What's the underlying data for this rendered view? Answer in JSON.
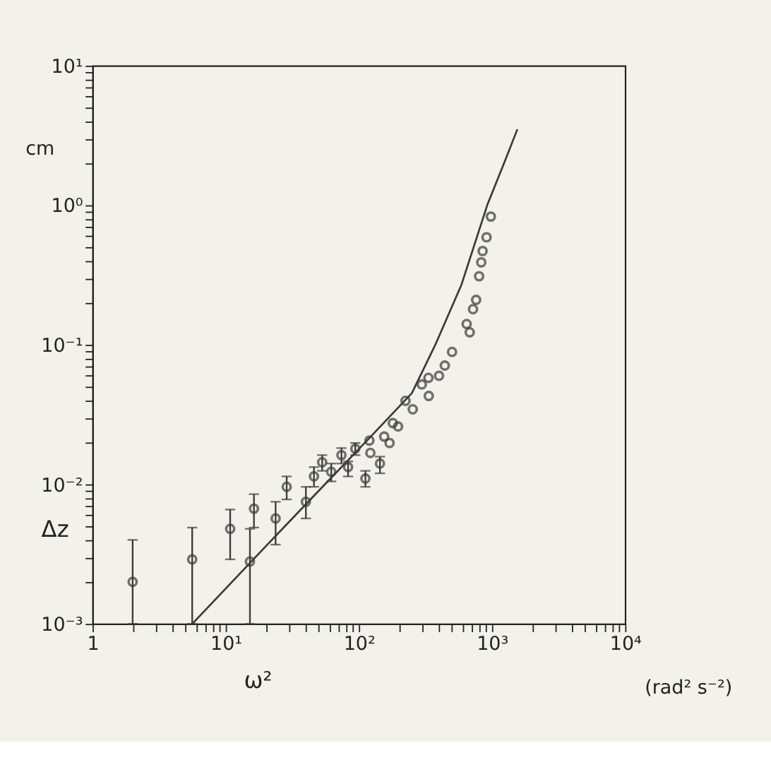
{
  "chart_data": {
    "type": "scatter",
    "xlabel": "ω²",
    "ylabel": "Δz",
    "annotations": [
      "cm",
      "(rad² s⁻²)"
    ],
    "log": "xy",
    "xlim": [
      1,
      10000
    ],
    "ylim": [
      0.001,
      10
    ],
    "xticks": [
      1,
      {
        "value": 2,
        "label": null
      },
      {
        "value": 3,
        "label": null
      },
      {
        "value": 4,
        "label": null
      },
      {
        "value": 5,
        "label": null
      },
      {
        "value": 6,
        "label": null
      },
      {
        "value": 7,
        "label": null
      },
      {
        "value": 8,
        "label": null
      },
      {
        "value": 9,
        "label": null
      },
      {
        "value": 10,
        "label": "10¹"
      },
      {
        "value": 20,
        "label": null
      },
      {
        "value": 30,
        "label": null
      },
      {
        "value": 40,
        "label": null
      },
      {
        "value": 50,
        "label": null
      },
      {
        "value": 60,
        "label": null
      },
      {
        "value": 70,
        "label": null
      },
      {
        "value": 80,
        "label": null
      },
      {
        "value": 90,
        "label": null
      },
      {
        "value": 100,
        "label": "10²"
      },
      {
        "value": 200,
        "label": null
      },
      {
        "value": 300,
        "label": null
      },
      {
        "value": 400,
        "label": null
      },
      {
        "value": 500,
        "label": null
      },
      {
        "value": 600,
        "label": null
      },
      {
        "value": 700,
        "label": null
      },
      {
        "value": 800,
        "label": null
      },
      {
        "value": 900,
        "label": null
      },
      {
        "value": 1000,
        "label": "10³"
      },
      {
        "value": 2000,
        "label": null
      },
      {
        "value": 3000,
        "label": null
      },
      {
        "value": 4000,
        "label": null
      },
      {
        "value": 5000,
        "label": null
      },
      {
        "value": 6000,
        "label": null
      },
      {
        "value": 7000,
        "label": null
      },
      {
        "value": 8000,
        "label": null
      },
      {
        "value": 9000,
        "label": null
      },
      {
        "value": 10000,
        "label": "10⁴"
      }
    ],
    "yticks": [
      {
        "value": 0.001,
        "label": "10⁻³"
      },
      {
        "value": 0.002,
        "label": null
      },
      {
        "value": 0.003,
        "label": null
      },
      {
        "value": 0.004,
        "label": null
      },
      {
        "value": 0.005,
        "label": null
      },
      {
        "value": 0.006,
        "label": null
      },
      {
        "value": 0.007,
        "label": null
      },
      {
        "value": 0.008,
        "label": null
      },
      {
        "value": 0.009,
        "label": null
      },
      {
        "value": 0.01,
        "label": "10⁻²"
      },
      {
        "value": 0.02,
        "label": null
      },
      {
        "value": 0.03,
        "label": null
      },
      {
        "value": 0.04,
        "label": null
      },
      {
        "value": 0.05,
        "label": null
      },
      {
        "value": 0.06,
        "label": null
      },
      {
        "value": 0.07,
        "label": null
      },
      {
        "value": 0.08,
        "label": null
      },
      {
        "value": 0.09,
        "label": null
      },
      {
        "value": 0.1,
        "label": "10⁻¹"
      },
      {
        "value": 0.2,
        "label": null
      },
      {
        "value": 0.3,
        "label": null
      },
      {
        "value": 0.4,
        "label": null
      },
      {
        "value": 0.5,
        "label": null
      },
      {
        "value": 0.6,
        "label": null
      },
      {
        "value": 0.7,
        "label": null
      },
      {
        "value": 0.8,
        "label": null
      },
      {
        "value": 0.9,
        "label": null
      },
      {
        "value": 1,
        "label": "10⁰"
      },
      {
        "value": 2,
        "label": null
      },
      {
        "value": 3,
        "label": null
      },
      {
        "value": 4,
        "label": null
      },
      {
        "value": 5,
        "label": null
      },
      {
        "value": 6,
        "label": null
      },
      {
        "value": 7,
        "label": null
      },
      {
        "value": 8,
        "label": null
      },
      {
        "value": 9,
        "label": null
      },
      {
        "value": 10,
        "label": "10¹"
      }
    ],
    "series": [
      {
        "color": "#3a3a3a",
        "marker": "circle",
        "x": [
          2.0,
          5.6,
          10.8,
          15.2,
          16.3,
          23.7,
          28.7,
          40,
          46,
          53,
          62,
          74,
          83,
          94,
          112,
          120,
          122,
          144,
          155,
          170,
          180,
          197,
          224,
          254,
          297,
          333,
          335,
          400,
          442,
          501,
          645,
          680,
          720,
          760,
          800,
          830,
          850,
          910,
          980
        ],
        "values": [
          0.002,
          0.0029,
          0.0048,
          0.0028,
          0.0067,
          0.0057,
          0.0096,
          0.0075,
          0.0114,
          0.0144,
          0.0123,
          0.0162,
          0.0133,
          0.018,
          0.011,
          0.0206,
          0.0168,
          0.0141,
          0.022,
          0.0198,
          0.0275,
          0.026,
          0.0397,
          0.0345,
          0.052,
          0.058,
          0.043,
          0.06,
          0.071,
          0.089,
          0.141,
          0.123,
          0.18,
          0.21,
          0.31,
          0.39,
          0.47,
          0.59,
          0.83
        ],
        "errors": [
          [
            0.001,
            0.004
          ],
          [
            0.001,
            0.0049
          ],
          [
            0.0029,
            0.0066
          ],
          [
            0.001,
            0.0048
          ],
          [
            0.0049,
            0.0085
          ],
          [
            0.0037,
            0.0075
          ],
          [
            0.0078,
            0.0114
          ],
          [
            0.0057,
            0.0096
          ],
          [
            0.0096,
            0.0133
          ],
          [
            0.0125,
            0.0162
          ],
          [
            0.0105,
            0.0141
          ],
          [
            0.0141,
            0.0182
          ],
          [
            0.0114,
            0.0146
          ],
          [
            0.0162,
            0.0198
          ],
          [
            0.0096,
            0.0125
          ],
          null,
          null,
          [
            0.012,
            0.0158
          ],
          null,
          null,
          null,
          null,
          null,
          null,
          null,
          null,
          null,
          null,
          null,
          null,
          null,
          null,
          null,
          null,
          null,
          null,
          null,
          null,
          null
        ]
      },
      {
        "type": "line",
        "color": "#3a3a3a",
        "line_style": "solid",
        "x": [
          5.6,
          20,
          50,
          120,
          250,
          375,
          590,
          920,
          1230,
          1550
        ],
        "values": [
          0.001,
          0.0036,
          0.009,
          0.0215,
          0.045,
          0.1,
          0.27,
          1.0,
          2.0,
          3.5
        ]
      }
    ]
  }
}
